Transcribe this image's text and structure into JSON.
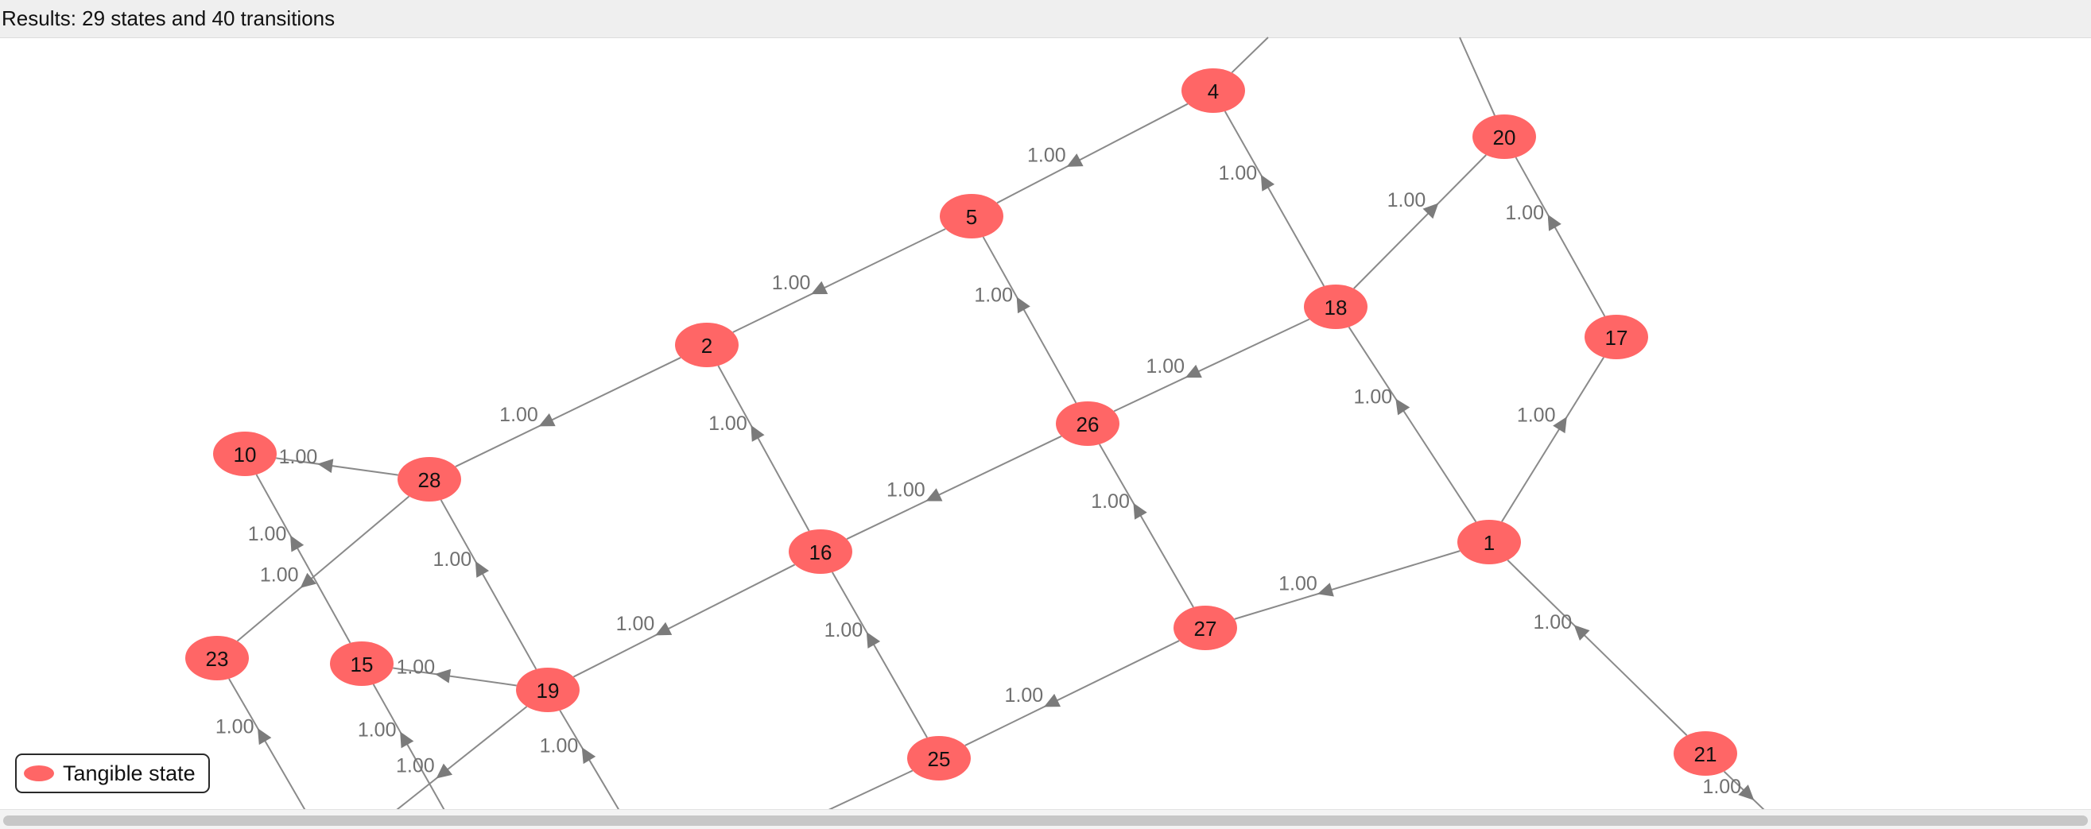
{
  "header": {
    "results_text": "Results: 29 states and 40 transitions"
  },
  "legend": {
    "label": "Tangible state",
    "color": "#ff6666"
  },
  "colors": {
    "node": "#ff6666",
    "edge": "#8a8a8a",
    "edge_label": "#707070"
  },
  "graph": {
    "nodes": [
      {
        "id": "1",
        "label": "1"
      },
      {
        "id": "2",
        "label": "2"
      },
      {
        "id": "4",
        "label": "4"
      },
      {
        "id": "5",
        "label": "5"
      },
      {
        "id": "10",
        "label": "10"
      },
      {
        "id": "15",
        "label": "15"
      },
      {
        "id": "16",
        "label": "16"
      },
      {
        "id": "17",
        "label": "17"
      },
      {
        "id": "18",
        "label": "18"
      },
      {
        "id": "19",
        "label": "19"
      },
      {
        "id": "20",
        "label": "20"
      },
      {
        "id": "21",
        "label": "21"
      },
      {
        "id": "23",
        "label": "23"
      },
      {
        "id": "25",
        "label": "25"
      },
      {
        "id": "26",
        "label": "26"
      },
      {
        "id": "27",
        "label": "27"
      },
      {
        "id": "28",
        "label": "28"
      }
    ],
    "edges": [
      {
        "from": "4",
        "to": "5",
        "label": "1.00"
      },
      {
        "from": "5",
        "to": "2",
        "label": "1.00"
      },
      {
        "from": "2",
        "to": "28",
        "label": "1.00"
      },
      {
        "from": "28",
        "to": "10",
        "label": "1.00"
      },
      {
        "from": "28",
        "to": "23",
        "label": "1.00"
      },
      {
        "from": "15",
        "to": "10",
        "label": "1.00"
      },
      {
        "from": "19",
        "to": "28",
        "label": "1.00"
      },
      {
        "from": "19",
        "to": "15",
        "label": "1.00"
      },
      {
        "from": "16",
        "to": "2",
        "label": "1.00"
      },
      {
        "from": "16",
        "to": "19",
        "label": "1.00"
      },
      {
        "from": "26",
        "to": "5",
        "label": "1.00"
      },
      {
        "from": "26",
        "to": "16",
        "label": "1.00"
      },
      {
        "from": "18",
        "to": "4",
        "label": "1.00"
      },
      {
        "from": "18",
        "to": "26",
        "label": "1.00"
      },
      {
        "from": "18",
        "to": "20",
        "label": "1.00"
      },
      {
        "from": "17",
        "to": "20",
        "label": "1.00"
      },
      {
        "from": "1",
        "to": "18",
        "label": "1.00"
      },
      {
        "from": "1",
        "to": "17",
        "label": "1.00"
      },
      {
        "from": "1",
        "to": "27",
        "label": "1.00"
      },
      {
        "from": "21",
        "to": "1",
        "label": "1.00"
      },
      {
        "from": "27",
        "to": "26",
        "label": "1.00"
      },
      {
        "from": "27",
        "to": "25",
        "label": "1.00"
      },
      {
        "from": "25",
        "to": "16",
        "label": "1.00"
      },
      {
        "from": "off-23",
        "to": "23",
        "label": "1.00"
      },
      {
        "from": "off-15",
        "to": "15",
        "label": "1.00"
      },
      {
        "from": "off-19b",
        "to": "19",
        "label": "1.00"
      },
      {
        "from": "19",
        "to": "off-19a",
        "label": "1.00"
      },
      {
        "from": "21",
        "to": "off-21",
        "label": "1.00"
      },
      {
        "from": "off-4",
        "to": "4",
        "label": ""
      },
      {
        "from": "off-20",
        "to": "20",
        "label": ""
      },
      {
        "from": "25",
        "to": "off-25",
        "label": ""
      }
    ]
  }
}
